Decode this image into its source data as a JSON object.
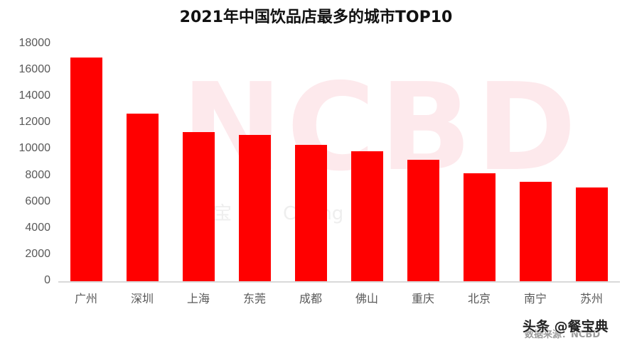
{
  "chart_data": {
    "type": "bar",
    "title": "2021年中国饮品店最多的城市TOP10",
    "categories": [
      "广州",
      "深圳",
      "上海",
      "东莞",
      "成都",
      "佛山",
      "重庆",
      "北京",
      "南宁",
      "苏州"
    ],
    "values": [
      17000,
      12700,
      11300,
      11100,
      10350,
      9850,
      9200,
      8200,
      7550,
      7100
    ],
    "xlabel": "",
    "ylabel": "",
    "ylim": [
      0,
      18000
    ],
    "yticks": [
      0,
      2000,
      4000,
      6000,
      8000,
      10000,
      12000,
      14000,
      16000,
      18000
    ],
    "grid": false,
    "legend": null,
    "bar_color": "#ff0000"
  },
  "watermark": {
    "big": "NCBD",
    "sub": "宝 Ne Ca ng Da"
  },
  "footer": {
    "source": "数据来源：NCBD",
    "brand": "头条 @餐宝典"
  }
}
